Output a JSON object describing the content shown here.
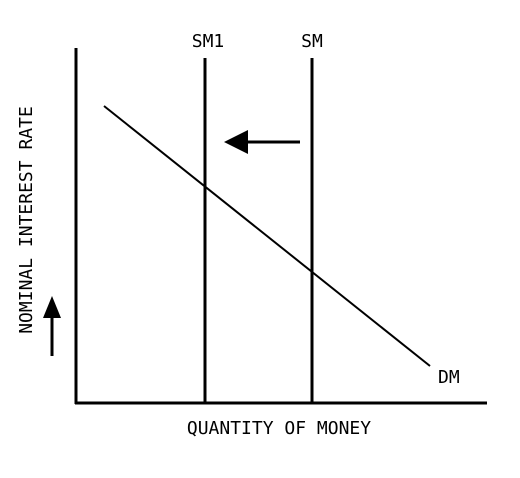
{
  "diagram": {
    "y_axis_label": "NOMINAL INTEREST RATE",
    "x_axis_label": "QUANTITY OF MONEY",
    "supply_curve_new_label": "SM1",
    "supply_curve_label": "SM",
    "demand_curve_label": "DM",
    "colors": {
      "ink": "#000000",
      "background": "#ffffff"
    },
    "icons": {
      "shift_arrow": "arrow-left-icon",
      "rate_arrow": "arrow-up-icon"
    }
  }
}
